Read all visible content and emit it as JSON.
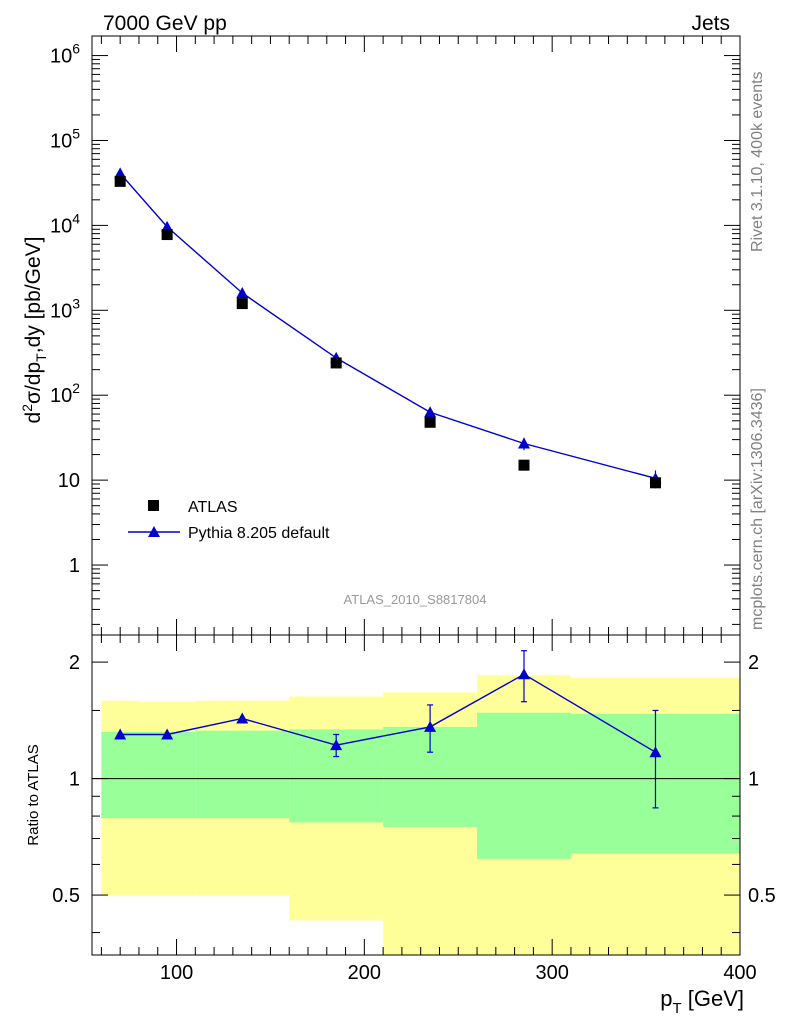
{
  "header": {
    "left_label": "7000 GeV pp",
    "right_label": "Jets"
  },
  "side": {
    "rivet_label": "Rivet 3.1.10,  400k events",
    "mcplots_label": "mcplots.cern.ch [arXiv:1306.3436]"
  },
  "analysis_label": "ATLAS_2010_S8817804",
  "colors": {
    "data": "#000000",
    "mc": "#0000cc",
    "band_inner": "#99ff99",
    "band_outer": "#ffff99",
    "side_text": "#808080"
  },
  "chart_data": [
    {
      "type": "line",
      "name": "main",
      "title": "7000 GeV pp  Jets",
      "xlabel": "p_T [GeV]",
      "ylabel": "d^2σ/dp_T,dy [pb/GeV]",
      "yscale": "log",
      "xlim": [
        55,
        400
      ],
      "ylim": [
        0.15,
        1700000
      ],
      "ytick_labels": [
        "1",
        "10",
        "10^2",
        "10^3",
        "10^4",
        "10^5",
        "10^6"
      ],
      "legend": [
        "ATLAS",
        "Pythia 8.205 default"
      ],
      "legend_position": "bottom-left",
      "series": [
        {
          "name": "ATLAS",
          "marker": "square",
          "x": [
            70,
            95,
            135,
            185,
            235,
            285,
            355
          ],
          "values": [
            33000,
            7800,
            1200,
            240,
            48,
            15,
            9.3
          ]
        },
        {
          "name": "Pythia 8.205 default",
          "marker": "triangle",
          "x": [
            70,
            95,
            135,
            185,
            235,
            285,
            355
          ],
          "values": [
            41000,
            9600,
            1600,
            275,
            63,
            27,
            10.5
          ],
          "err": [
            1800,
            450,
            60,
            14,
            4,
            4.5,
            2.5
          ]
        }
      ]
    },
    {
      "type": "line",
      "name": "ratio",
      "ylabel": "Ratio to ATLAS",
      "xlabel": "p_T [GeV]",
      "xlim": [
        55,
        400
      ],
      "ylim": [
        0.35,
        2.35
      ],
      "xticks": [
        100,
        200,
        300,
        400
      ],
      "yticks": [
        0.5,
        1,
        2
      ],
      "ytick_labels": [
        "0.5",
        "1",
        "2"
      ],
      "reference_line": 1,
      "bins": [
        {
          "lo": 60,
          "hi": 80,
          "inner": [
            0.79,
            1.32
          ],
          "outer": [
            0.5,
            1.59
          ]
        },
        {
          "lo": 80,
          "hi": 110,
          "inner": [
            0.79,
            1.32
          ],
          "outer": [
            0.5,
            1.58
          ]
        },
        {
          "lo": 110,
          "hi": 160,
          "inner": [
            0.79,
            1.33
          ],
          "outer": [
            0.5,
            1.59
          ]
        },
        {
          "lo": 160,
          "hi": 210,
          "inner": [
            0.77,
            1.34
          ],
          "outer": [
            0.43,
            1.63
          ]
        },
        {
          "lo": 210,
          "hi": 260,
          "inner": [
            0.75,
            1.36
          ],
          "outer": [
            0.35,
            1.67
          ]
        },
        {
          "lo": 260,
          "hi": 310,
          "inner": [
            0.62,
            1.48
          ],
          "outer": [
            0.35,
            1.85
          ]
        },
        {
          "lo": 310,
          "hi": 400,
          "inner": [
            0.64,
            1.47
          ],
          "outer": [
            0.35,
            1.82
          ]
        }
      ],
      "series": [
        {
          "name": "Pythia 8.205 default / ATLAS",
          "x": [
            70,
            95,
            135,
            185,
            235,
            285,
            355
          ],
          "values": [
            1.3,
            1.3,
            1.43,
            1.22,
            1.36,
            1.86,
            1.17
          ],
          "err": [
            0.02,
            0.02,
            0.03,
            0.08,
            0.19,
            0.28,
            0.33
          ]
        }
      ]
    }
  ]
}
